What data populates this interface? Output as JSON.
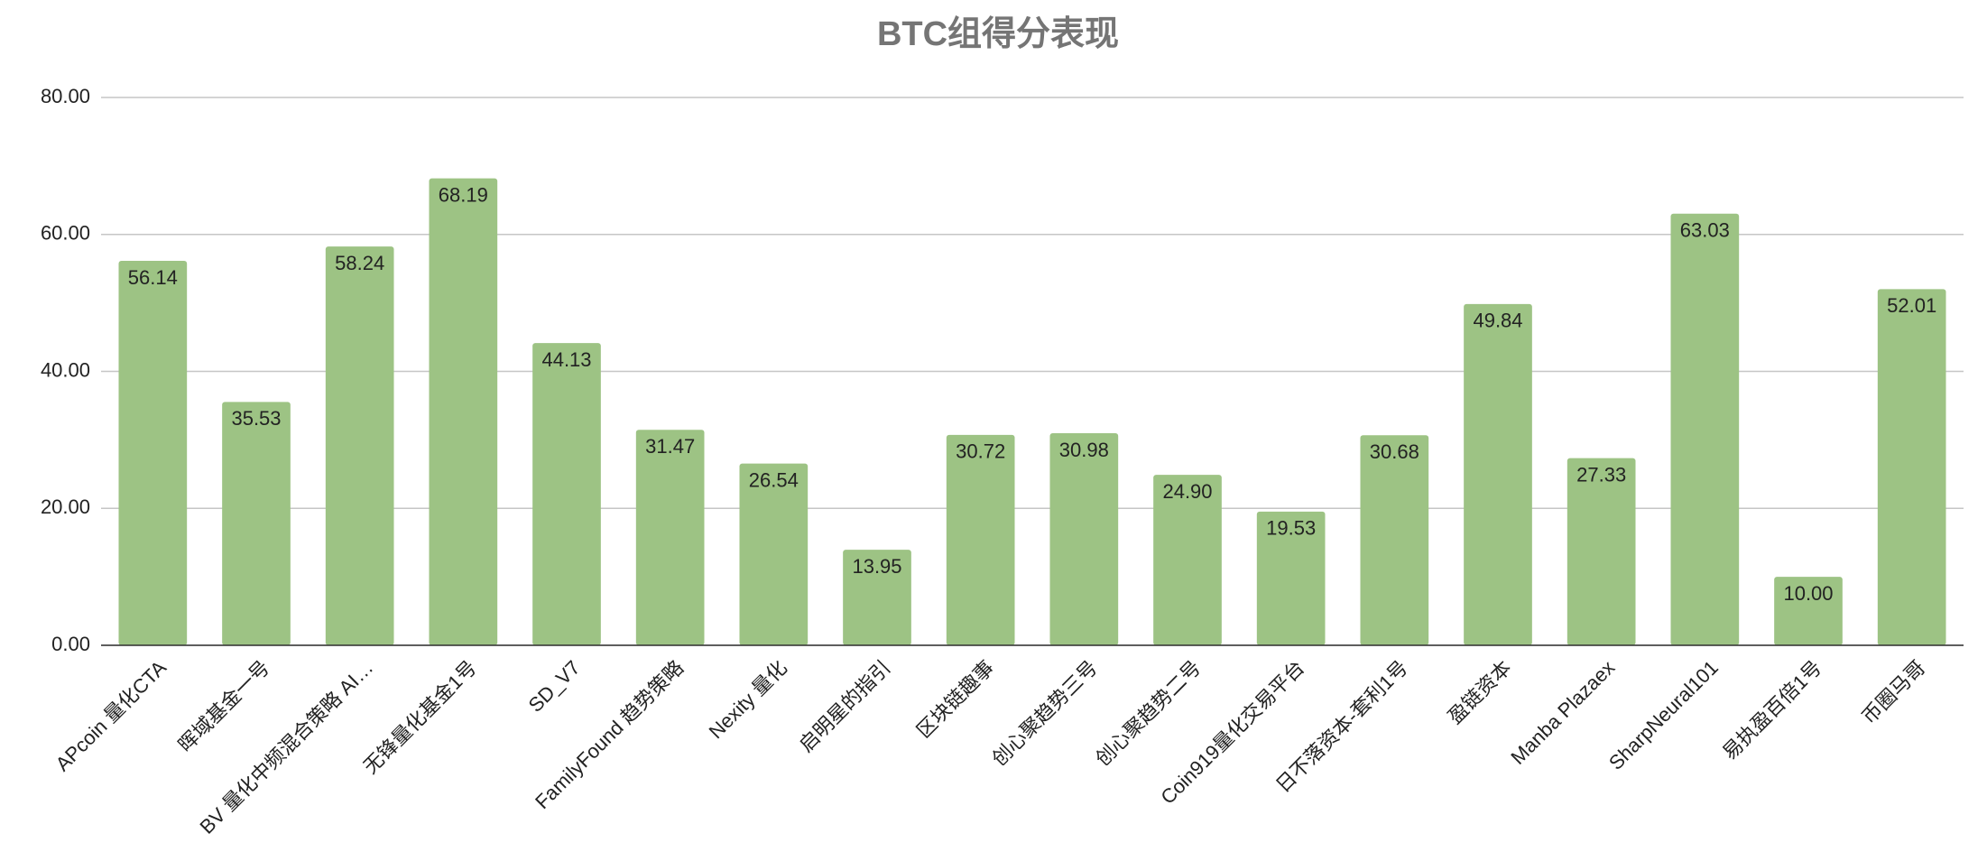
{
  "chart_data": {
    "type": "bar",
    "title": "BTC组得分表现",
    "categories": [
      "APcoin 量化CTA",
      "晖域基金一号",
      "BV 量化中频混合策略 AI…",
      "无锋量化基金1号",
      "SD_V7",
      "FamilyFound 趋势策略",
      "Nexity 量化",
      "启明星的指引",
      "区块链趣事",
      "创心聚趋势三号",
      "创心聚趋势二号",
      "Coin919量化交易平台",
      "日不落资本-套利1号",
      "盈链资本",
      "Manba Plazaex",
      "SharpNeural101",
      "易执盈百倍1号",
      "币圈马哥"
    ],
    "values": [
      56.14,
      35.53,
      58.24,
      68.19,
      44.13,
      31.47,
      26.54,
      13.95,
      30.72,
      30.98,
      24.9,
      19.53,
      30.68,
      49.84,
      27.33,
      63.03,
      10.0,
      52.01
    ],
    "value_labels": [
      "56.14",
      "35.53",
      "58.24",
      "68.19",
      "44.13",
      "31.47",
      "26.54",
      "13.95",
      "30.72",
      "30.98",
      "24.90",
      "19.53",
      "30.68",
      "49.84",
      "27.33",
      "63.03",
      "10.00",
      "52.01"
    ],
    "color": "#9dc384",
    "ylim": [
      0,
      80
    ],
    "yticks": [
      {
        "value": 0,
        "label": "0.00"
      },
      {
        "value": 20,
        "label": "20.00"
      },
      {
        "value": 40,
        "label": "40.00"
      },
      {
        "value": 60,
        "label": "60.00"
      },
      {
        "value": 80,
        "label": "80.00"
      }
    ],
    "grid": true
  }
}
